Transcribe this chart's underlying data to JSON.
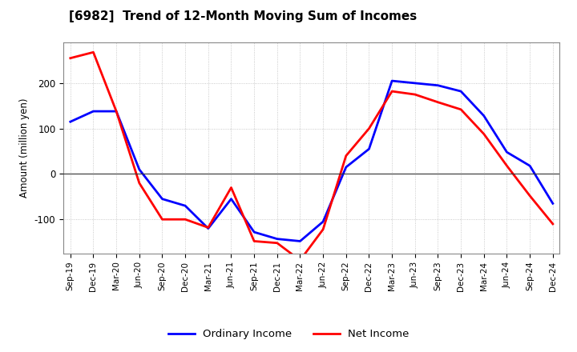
{
  "title": "[6982]  Trend of 12-Month Moving Sum of Incomes",
  "ylabel": "Amount (million yen)",
  "x_labels": [
    "Sep-19",
    "Dec-19",
    "Mar-20",
    "Jun-20",
    "Sep-20",
    "Dec-20",
    "Mar-21",
    "Jun-21",
    "Sep-21",
    "Dec-21",
    "Mar-22",
    "Jun-22",
    "Sep-22",
    "Dec-22",
    "Mar-23",
    "Jun-23",
    "Sep-23",
    "Dec-23",
    "Mar-24",
    "Jun-24",
    "Sep-24",
    "Dec-24"
  ],
  "ordinary_income": [
    115,
    138,
    138,
    10,
    -55,
    -70,
    -120,
    -55,
    -128,
    -143,
    -148,
    -105,
    15,
    55,
    205,
    200,
    195,
    182,
    128,
    48,
    18,
    -65
  ],
  "net_income": [
    255,
    268,
    138,
    -20,
    -100,
    -100,
    -118,
    -30,
    -148,
    -152,
    -190,
    -122,
    40,
    100,
    182,
    175,
    158,
    142,
    88,
    18,
    -48,
    -110
  ],
  "ordinary_color": "#0000ff",
  "net_color": "#ff0000",
  "ylim": [
    -175,
    290
  ],
  "yticks": [
    -100,
    0,
    100,
    200
  ],
  "background_color": "#ffffff",
  "grid_color": "#bbbbbb",
  "title_fontsize": 11,
  "legend_labels": [
    "Ordinary Income",
    "Net Income"
  ],
  "line_width": 2.0
}
